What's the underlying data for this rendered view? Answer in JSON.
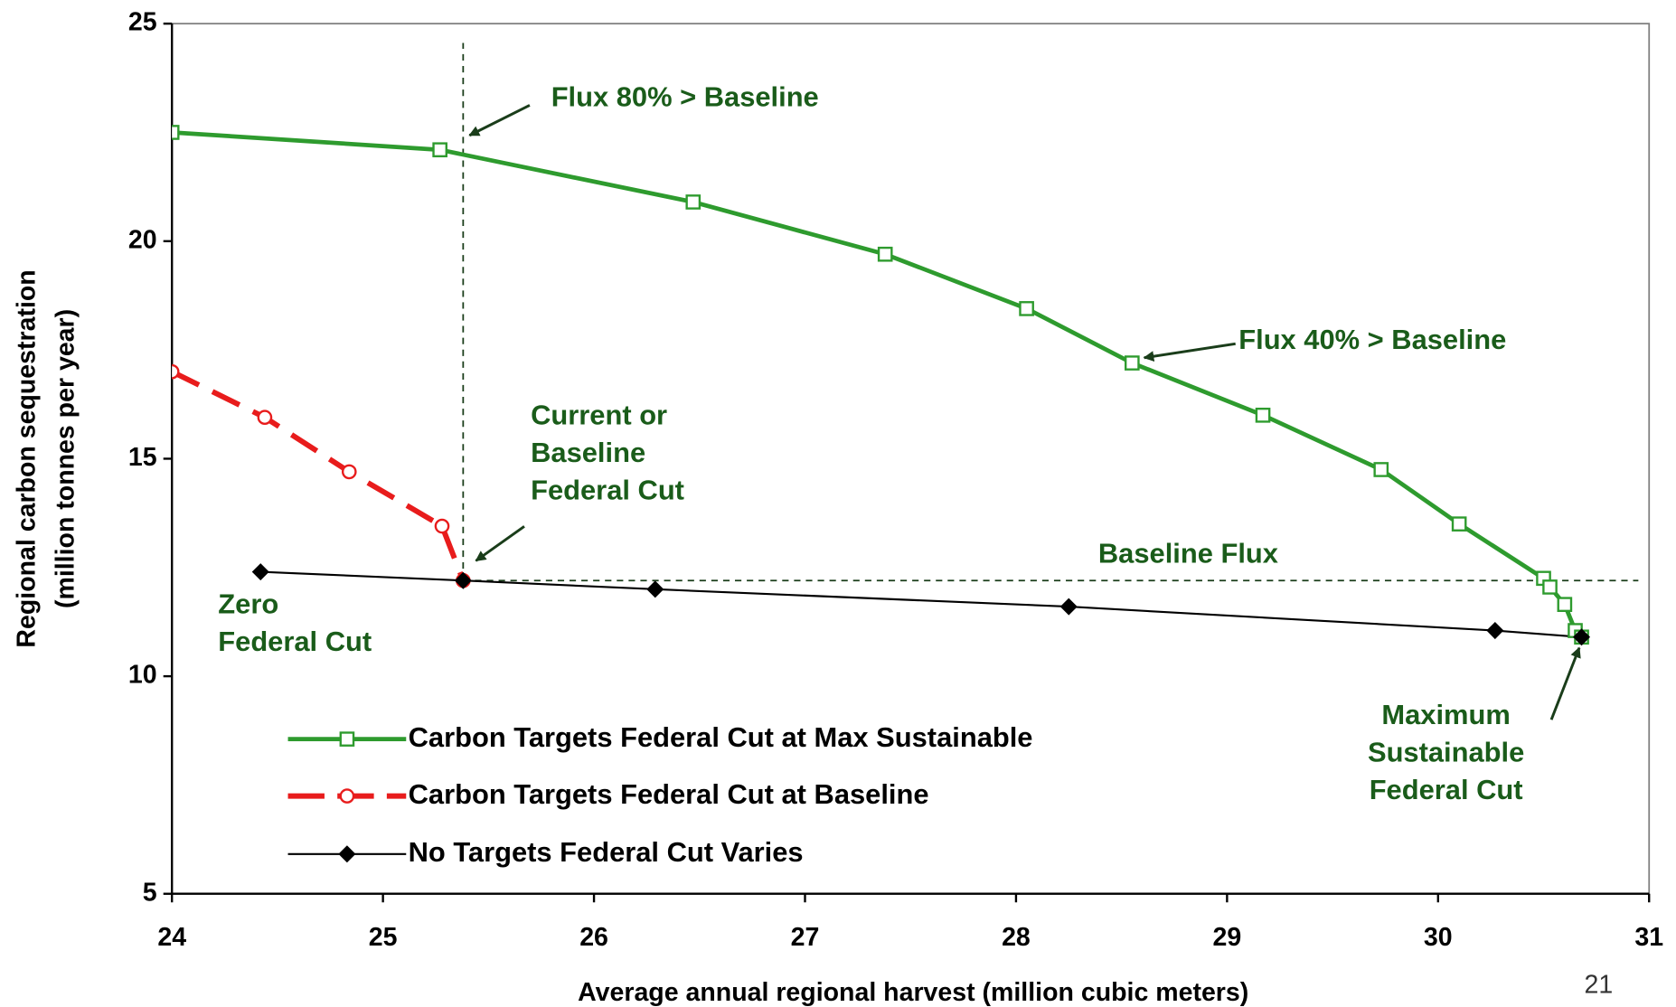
{
  "chart_data": {
    "type": "line",
    "xlabel": "Average annual regional harvest (million cubic meters)",
    "ylabel": [
      "Regional carbon sequestration",
      "(million tonnes per year)"
    ],
    "xlim": [
      24,
      31
    ],
    "xticks": [
      24,
      25,
      26,
      27,
      28,
      29,
      30,
      31
    ],
    "ylim": [
      5,
      25
    ],
    "yticks": [
      5,
      10,
      15,
      20,
      25
    ],
    "grid": false,
    "legend": "lower left",
    "hline": 12.2,
    "vline": 25.38,
    "series": [
      {
        "name": "Carbon Targets Federal Cut at Max Sustainable",
        "color": "#2e9b2e",
        "marker": "square",
        "dash": "solid",
        "x": [
          24,
          25.27,
          26.47,
          27.38,
          28.05,
          28.55,
          29.17,
          29.73,
          30.1,
          30.5,
          30.53,
          30.6,
          30.65,
          30.68
        ],
        "values": [
          22.5,
          22.1,
          20.9,
          19.7,
          18.45,
          17.2,
          16.0,
          14.75,
          13.5,
          12.25,
          12.05,
          11.65,
          11.05,
          10.9
        ]
      },
      {
        "name": "Carbon Targets Federal Cut at Baseline",
        "color": "#e81c1c",
        "marker": "circle",
        "dash": "dashed",
        "x": [
          24,
          24.44,
          24.84,
          25.28,
          25.38
        ],
        "values": [
          17.0,
          15.95,
          14.7,
          13.45,
          12.2
        ]
      },
      {
        "name": "No Targets Federal Cut Varies",
        "color": "#000000",
        "marker": "diamond",
        "dash": "thin",
        "x": [
          24.42,
          25.38,
          26.29,
          28.25,
          30.27,
          30.68
        ],
        "values": [
          12.4,
          12.2,
          12.0,
          11.6,
          11.05,
          10.9
        ]
      }
    ]
  },
  "annotations": {
    "flux80": "Flux 80% > Baseline",
    "flux40": "Flux 40% > Baseline",
    "current": [
      "Current or",
      "Baseline",
      "Federal Cut"
    ],
    "baseline_flux": "Baseline Flux",
    "zero": [
      "Zero",
      "Federal Cut"
    ],
    "maximum": [
      "Maximum",
      "Sustainable",
      "Federal Cut"
    ]
  },
  "page_number": "21"
}
